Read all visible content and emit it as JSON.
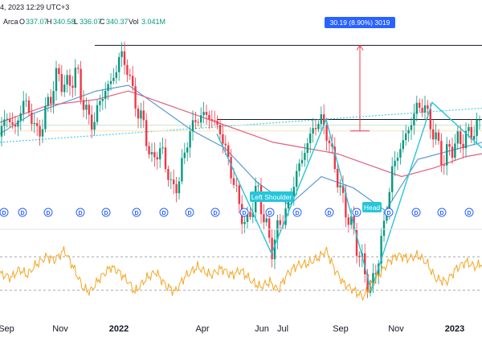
{
  "header": {
    "datetime": "4, 2023 12:29 UTC+3",
    "exchange": "Arca",
    "open_label": "O",
    "open": "337.07",
    "high_label": "H",
    "high": "340.58",
    "low_label": "L",
    "low": "336.07",
    "close_label": "C",
    "close": "340.37",
    "vol_label": "Vol",
    "vol": "3.041M"
  },
  "annotations": {
    "measure_label": "30.19 (8.90%) 3019",
    "left_shoulder": "Left Shoulder",
    "head": "Head",
    "dividend_marker": "D"
  },
  "colors": {
    "up": "#089981",
    "down": "#f23645",
    "ma_fast": "#5b9bd5",
    "ma_slow": "#e0607e",
    "pattern": "#26c6da",
    "oscillator": "#f5a623",
    "measure_line": "#f23645",
    "measure_label_bg": "#2962ff",
    "marker_blue": "#2962ff"
  },
  "chart_data": [
    {
      "type": "candlestick",
      "title": "",
      "x_ticks": [
        "Sep",
        "Nov",
        "2022",
        "Apr",
        "Jun",
        "Jul",
        "Sep",
        "Nov",
        "2023"
      ],
      "bold_ticks": [
        "2022",
        "2023"
      ],
      "price_range": [
        318,
        384
      ],
      "series": [
        {
          "name": "",
          "kind": "candles",
          "anchors": [
            [
              0,
              344
            ],
            [
              8,
              352
            ],
            [
              18,
              346
            ],
            [
              30,
              357
            ],
            [
              40,
              350
            ],
            [
              48,
              344
            ],
            [
              60,
              356
            ],
            [
              72,
              366
            ],
            [
              82,
              361
            ],
            [
              96,
              367
            ],
            [
              102,
              357
            ],
            [
              108,
              352
            ],
            [
              116,
              348
            ],
            [
              126,
              358
            ],
            [
              136,
              362
            ],
            [
              146,
              368
            ],
            [
              150,
              374
            ],
            [
              160,
              366
            ],
            [
              172,
              352
            ],
            [
              180,
              348
            ],
            [
              188,
              334
            ],
            [
              196,
              340
            ],
            [
              208,
              334
            ],
            [
              214,
              324
            ],
            [
              224,
              330
            ],
            [
              234,
              344
            ],
            [
              244,
              350
            ],
            [
              256,
              352
            ],
            [
              264,
              350
            ],
            [
              274,
              346
            ],
            [
              284,
              336
            ],
            [
              296,
              322
            ],
            [
              306,
              312
            ],
            [
              312,
              318
            ],
            [
              320,
              326
            ],
            [
              330,
              314
            ],
            [
              338,
              304
            ],
            [
              346,
              312
            ],
            [
              356,
              318
            ],
            [
              368,
              330
            ],
            [
              378,
              338
            ],
            [
              390,
              347
            ],
            [
              400,
              350
            ],
            [
              408,
              344
            ],
            [
              418,
              332
            ],
            [
              428,
              320
            ],
            [
              436,
              314
            ],
            [
              446,
              304
            ],
            [
              456,
              294
            ],
            [
              462,
              290
            ],
            [
              470,
              300
            ],
            [
              480,
              316
            ],
            [
              488,
              332
            ],
            [
              498,
              340
            ],
            [
              508,
              346
            ],
            [
              518,
              354
            ],
            [
              528,
              355
            ],
            [
              536,
              348
            ],
            [
              544,
              342
            ],
            [
              552,
              335
            ],
            [
              560,
              340
            ],
            [
              570,
              342
            ],
            [
              580,
              344
            ],
            [
              590,
              346
            ],
            [
              600,
              350
            ]
          ]
        },
        {
          "name": "",
          "kind": "ma_fast",
          "anchors": [
            [
              0,
              345
            ],
            [
              40,
              352
            ],
            [
              80,
              356
            ],
            [
              120,
              360
            ],
            [
              160,
              362
            ],
            [
              200,
              354
            ],
            [
              240,
              346
            ],
            [
              280,
              340
            ],
            [
              320,
              328
            ],
            [
              360,
              320
            ],
            [
              400,
              330
            ],
            [
              440,
              326
            ],
            [
              480,
              318
            ],
            [
              520,
              336
            ],
            [
              560,
              339
            ],
            [
              600,
              342
            ]
          ]
        },
        {
          "name": "",
          "kind": "ma_slow",
          "anchors": [
            [
              0,
              349
            ],
            [
              60,
              355
            ],
            [
              120,
              357
            ],
            [
              160,
              360
            ],
            [
              200,
              356
            ],
            [
              260,
              350
            ],
            [
              300,
              346
            ],
            [
              340,
              342
            ],
            [
              380,
              340
            ],
            [
              420,
              338
            ],
            [
              460,
              334
            ],
            [
              500,
              330
            ],
            [
              540,
              333
            ],
            [
              580,
              337
            ],
            [
              600,
              338
            ]
          ]
        }
      ],
      "levels": [
        {
          "kind": "neckline",
          "from": [
            270,
            350
          ],
          "to": [
            600,
            350
          ]
        },
        {
          "kind": "top_line",
          "from": [
            118,
            376
          ],
          "to": [
            600,
            376
          ]
        },
        {
          "kind": "support_trend",
          "from": [
            0,
            342
          ],
          "to": [
            600,
            354
          ],
          "dotted": true
        }
      ],
      "pattern_points": [
        [
          270,
          345
        ],
        [
          338,
          303
        ],
        [
          406,
          350
        ],
        [
          462,
          290
        ],
        [
          538,
          356
        ],
        [
          600,
          340
        ]
      ],
      "measure": {
        "x": 448,
        "from": 346,
        "to": 376
      },
      "dividend_x": [
        5,
        28,
        60,
        100,
        132,
        170,
        204,
        236,
        268,
        304,
        336,
        370,
        410,
        444,
        484,
        518,
        550,
        584
      ]
    },
    {
      "type": "line",
      "title": "",
      "y_range": [
        0,
        100
      ],
      "dashed_levels": [
        70,
        30
      ],
      "series": [
        {
          "name": "",
          "anchors": [
            [
              0,
              50
            ],
            [
              14,
              45
            ],
            [
              24,
              55
            ],
            [
              34,
              48
            ],
            [
              44,
              60
            ],
            [
              58,
              70
            ],
            [
              68,
              66
            ],
            [
              80,
              78
            ],
            [
              90,
              60
            ],
            [
              104,
              32
            ],
            [
              112,
              28
            ],
            [
              124,
              44
            ],
            [
              138,
              58
            ],
            [
              148,
              52
            ],
            [
              160,
              40
            ],
            [
              168,
              28
            ],
            [
              182,
              44
            ],
            [
              194,
              52
            ],
            [
              206,
              36
            ],
            [
              218,
              28
            ],
            [
              230,
              46
            ],
            [
              246,
              58
            ],
            [
              262,
              48
            ],
            [
              276,
              56
            ],
            [
              288,
              48
            ],
            [
              300,
              54
            ],
            [
              314,
              40
            ],
            [
              324,
              34
            ],
            [
              336,
              40
            ],
            [
              346,
              30
            ],
            [
              358,
              50
            ],
            [
              370,
              60
            ],
            [
              384,
              62
            ],
            [
              398,
              70
            ],
            [
              406,
              78
            ],
            [
              416,
              56
            ],
            [
              428,
              38
            ],
            [
              440,
              30
            ],
            [
              452,
              22
            ],
            [
              464,
              38
            ],
            [
              476,
              54
            ],
            [
              486,
              66
            ],
            [
              496,
              72
            ],
            [
              508,
              68
            ],
            [
              520,
              72
            ],
            [
              532,
              62
            ],
            [
              542,
              44
            ],
            [
              556,
              40
            ],
            [
              568,
              56
            ],
            [
              580,
              64
            ],
            [
              592,
              58
            ],
            [
              600,
              62
            ]
          ]
        }
      ]
    }
  ]
}
